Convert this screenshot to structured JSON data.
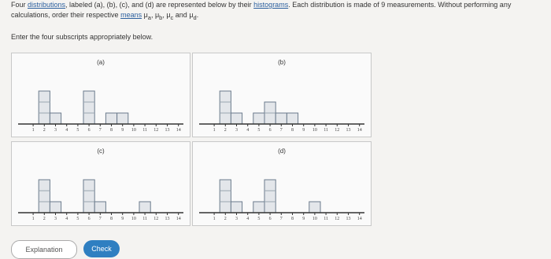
{
  "prompt": {
    "t1": "Four ",
    "l1": "distributions",
    "t2": ", labeled (a), (b), (c), and (d) are represented below by their ",
    "l2": "histograms",
    "t3": ". Each distribution is made of 9 measurements. Without performing any calculations, order their respective ",
    "l3": "means",
    "symbol": "μ",
    "subs": [
      "a",
      "b",
      "c",
      "d"
    ],
    "seps": [
      ", ",
      ", ",
      " and ",
      "."
    ]
  },
  "instruction": "Enter the four subscripts appropriately below.",
  "x_ticks": [
    1,
    2,
    3,
    4,
    5,
    6,
    7,
    8,
    9,
    10,
    11,
    12,
    13,
    14
  ],
  "histograms": [
    {
      "label": "(a)",
      "counts": [
        0,
        3,
        1,
        0,
        0,
        3,
        0,
        1,
        1,
        0,
        0,
        0,
        0,
        0
      ]
    },
    {
      "label": "(b)",
      "counts": [
        0,
        3,
        1,
        0,
        1,
        2,
        1,
        1,
        0,
        0,
        0,
        0,
        0,
        0
      ]
    },
    {
      "label": "(c)",
      "counts": [
        0,
        3,
        1,
        0,
        0,
        3,
        1,
        0,
        0,
        0,
        1,
        0,
        0,
        0
      ]
    },
    {
      "label": "(d)",
      "counts": [
        0,
        3,
        1,
        0,
        1,
        3,
        0,
        0,
        0,
        1,
        0,
        0,
        0,
        0
      ]
    }
  ],
  "buttons": {
    "explanation": "Explanation",
    "check": "Check"
  }
}
